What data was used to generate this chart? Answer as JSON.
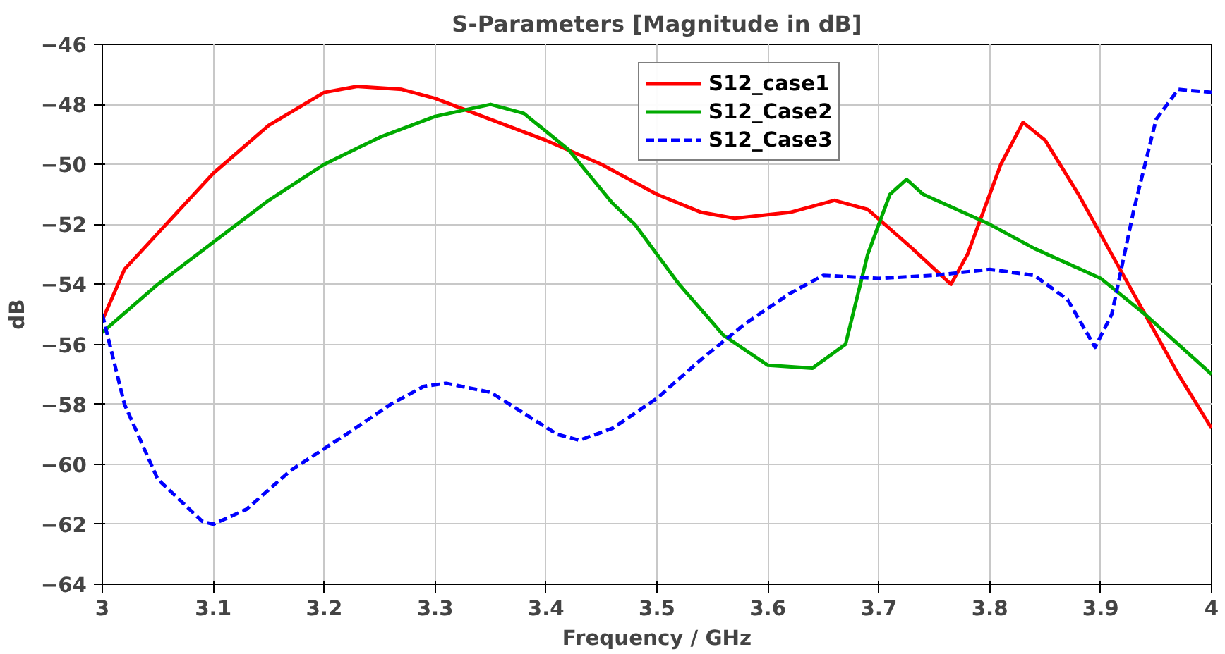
{
  "chart_data": {
    "type": "line",
    "title": "S-Parameters [Magnitude in dB]",
    "xlabel": "Frequency / GHz",
    "ylabel": "dB",
    "xlim": [
      3,
      4
    ],
    "xticks": [
      3,
      3.1,
      3.2,
      3.3,
      3.4,
      3.5,
      3.6,
      3.7,
      3.8,
      3.9,
      4
    ],
    "ylim": [
      -64,
      -46
    ],
    "yticks": [
      -64,
      -62,
      -60,
      -58,
      -56,
      -54,
      -52,
      -50,
      -48,
      -46
    ],
    "grid": true,
    "legend": "top right",
    "marker": "none",
    "series": [
      {
        "name": "S12_case1",
        "color": "#ff0000",
        "line_style": "solid",
        "x": [
          3.0,
          3.02,
          3.05,
          3.1,
          3.15,
          3.2,
          3.23,
          3.27,
          3.3,
          3.35,
          3.4,
          3.45,
          3.5,
          3.54,
          3.57,
          3.62,
          3.66,
          3.69,
          3.73,
          3.765,
          3.78,
          3.81,
          3.83,
          3.85,
          3.88,
          3.91,
          3.94,
          3.97,
          4.0
        ],
        "values": [
          -55.2,
          -53.5,
          -52.3,
          -50.3,
          -48.7,
          -47.6,
          -47.4,
          -47.5,
          -47.8,
          -48.5,
          -49.2,
          -50.0,
          -51.0,
          -51.6,
          -51.8,
          -51.6,
          -51.2,
          -51.5,
          -52.8,
          -54.0,
          -53.0,
          -50.0,
          -48.6,
          -49.2,
          -51.0,
          -53.0,
          -55.0,
          -57.0,
          -58.8
        ]
      },
      {
        "name": "S12_Case2",
        "color": "#00aa00",
        "line_style": "solid",
        "x": [
          3.0,
          3.05,
          3.1,
          3.15,
          3.2,
          3.25,
          3.3,
          3.35,
          3.38,
          3.42,
          3.46,
          3.48,
          3.52,
          3.56,
          3.6,
          3.64,
          3.67,
          3.69,
          3.71,
          3.725,
          3.74,
          3.77,
          3.8,
          3.84,
          3.9,
          3.94,
          3.97,
          4.0
        ],
        "values": [
          -55.6,
          -54.0,
          -52.6,
          -51.2,
          -50.0,
          -49.1,
          -48.4,
          -48.0,
          -48.3,
          -49.5,
          -51.3,
          -52.0,
          -54.0,
          -55.7,
          -56.7,
          -56.8,
          -56.0,
          -53.0,
          -51.0,
          -50.5,
          -51.0,
          -51.5,
          -52.0,
          -52.8,
          -53.8,
          -55.0,
          -56.0,
          -57.0
        ]
      },
      {
        "name": "S12_Case3",
        "color": "#0000ff",
        "line_style": "dashed",
        "x": [
          3.0,
          3.02,
          3.05,
          3.09,
          3.1,
          3.13,
          3.17,
          3.22,
          3.26,
          3.29,
          3.31,
          3.35,
          3.38,
          3.41,
          3.43,
          3.46,
          3.5,
          3.54,
          3.58,
          3.62,
          3.65,
          3.7,
          3.75,
          3.8,
          3.84,
          3.87,
          3.895,
          3.91,
          3.93,
          3.95,
          3.97,
          4.0
        ],
        "values": [
          -55.0,
          -58.0,
          -60.5,
          -61.9,
          -62.0,
          -61.5,
          -60.2,
          -59.0,
          -58.0,
          -57.4,
          -57.3,
          -57.6,
          -58.3,
          -59.0,
          -59.2,
          -58.8,
          -57.8,
          -56.5,
          -55.3,
          -54.3,
          -53.7,
          -53.8,
          -53.7,
          -53.5,
          -53.7,
          -54.5,
          -56.1,
          -55.0,
          -51.5,
          -48.5,
          -47.5,
          -47.6
        ]
      }
    ]
  }
}
